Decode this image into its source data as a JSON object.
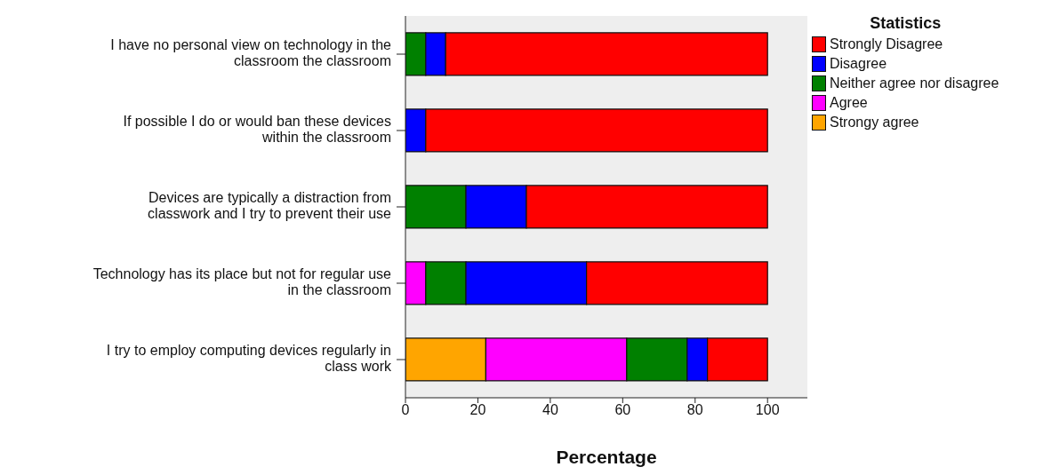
{
  "chart_data": {
    "type": "bar",
    "orientation": "horizontal",
    "stacked": true,
    "xlabel": "Percentage",
    "legend_title": "Statistics",
    "legend": "top right",
    "categories": [
      "I have no personal view on technology in the classroom the classroom",
      "If possible I do or would ban these devices within the classroom",
      "Devices are typically a distraction from classwork and I try to prevent their use",
      "Technology has its place but not for regular use in the classroom",
      "I try to employ computing devices regularly in class work"
    ],
    "series": [
      {
        "name": "Strongy agree",
        "color": "#ffa500",
        "values": [
          0,
          0,
          0,
          0,
          22.2
        ]
      },
      {
        "name": "Agree",
        "color": "#ff00ff",
        "values": [
          0,
          0,
          0,
          5.6,
          38.9
        ]
      },
      {
        "name": "Neither agree nor disagree",
        "color": "#008000",
        "values": [
          5.6,
          0,
          16.7,
          11.1,
          16.7
        ]
      },
      {
        "name": "Disagree",
        "color": "#0000ff",
        "values": [
          5.5,
          5.6,
          16.7,
          33.3,
          5.6
        ]
      },
      {
        "name": "Strongly Disagree",
        "color": "#ff0000",
        "values": [
          88.9,
          94.4,
          66.6,
          50,
          16.6
        ]
      }
    ],
    "xlim": [
      0,
      111
    ],
    "xticks": [
      0,
      20,
      40,
      60,
      80,
      100
    ]
  }
}
